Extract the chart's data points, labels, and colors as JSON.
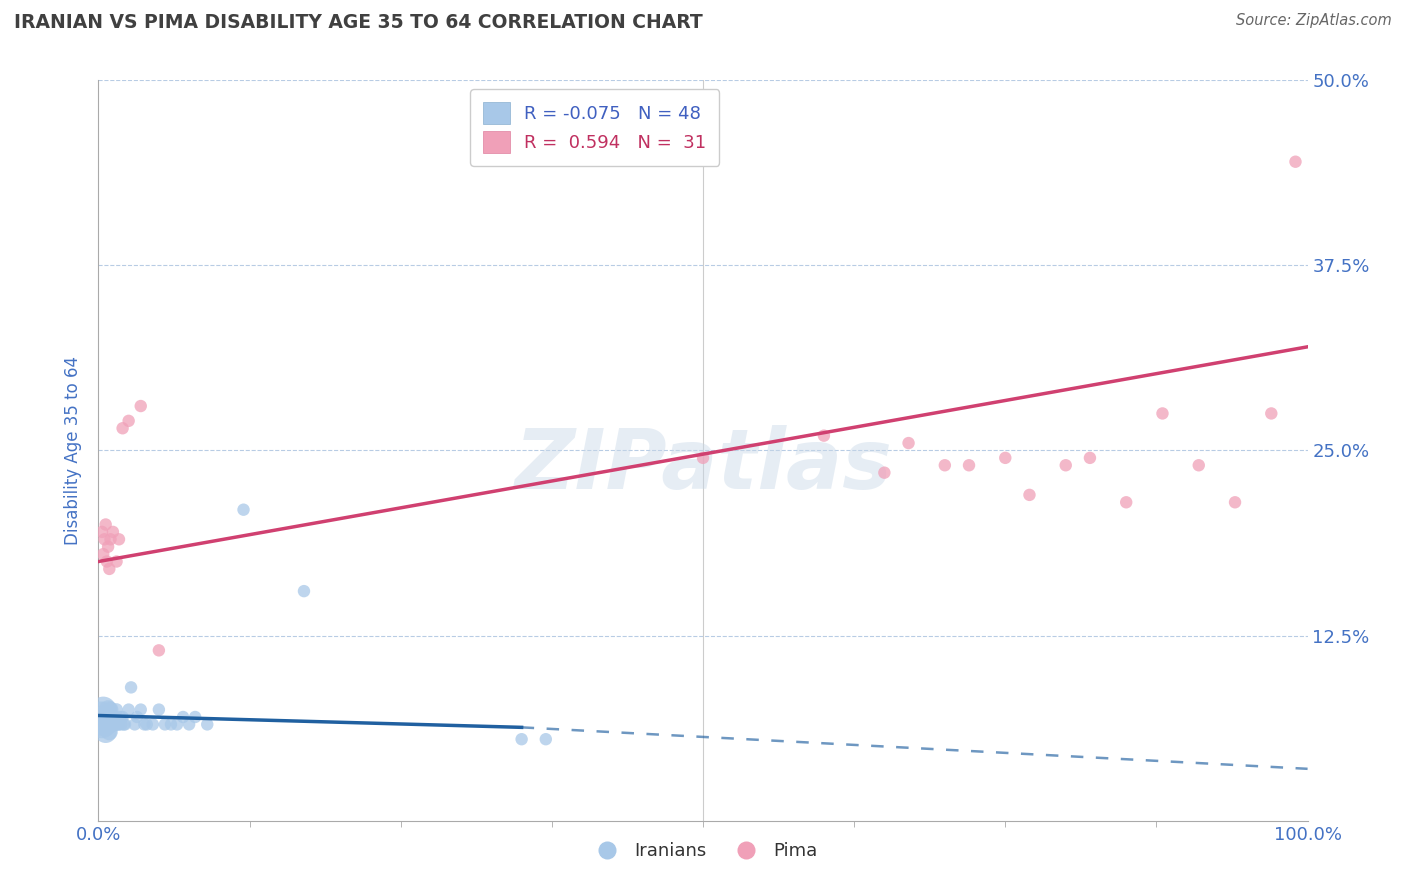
{
  "title": "IRANIAN VS PIMA DISABILITY AGE 35 TO 64 CORRELATION CHART",
  "source": "Source: ZipAtlas.com",
  "ylabel": "Disability Age 35 to 64",
  "xlim": [
    0.0,
    1.0
  ],
  "ylim": [
    0.0,
    0.5
  ],
  "yticks": [
    0.0,
    0.125,
    0.25,
    0.375,
    0.5
  ],
  "ytick_labels": [
    "",
    "12.5%",
    "25.0%",
    "37.5%",
    "50.0%"
  ],
  "xtick_labels": [
    "0.0%",
    "100.0%"
  ],
  "legend_R_iranian": "-0.075",
  "legend_N_iranian": "48",
  "legend_R_pima": "0.594",
  "legend_N_pima": "31",
  "iranian_color": "#a8c8e8",
  "pima_color": "#f0a0b8",
  "trendline_iranian_color": "#2060a0",
  "trendline_pima_color": "#d04070",
  "background_color": "#ffffff",
  "watermark": "ZIPatlas",
  "iranian_x": [
    0.002,
    0.003,
    0.004,
    0.005,
    0.005,
    0.006,
    0.006,
    0.007,
    0.007,
    0.008,
    0.008,
    0.009,
    0.009,
    0.01,
    0.01,
    0.011,
    0.011,
    0.012,
    0.013,
    0.014,
    0.015,
    0.016,
    0.017,
    0.018,
    0.019,
    0.02,
    0.021,
    0.022,
    0.025,
    0.027,
    0.03,
    0.032,
    0.035,
    0.038,
    0.04,
    0.045,
    0.05,
    0.055,
    0.06,
    0.065,
    0.07,
    0.075,
    0.08,
    0.09,
    0.12,
    0.17,
    0.35,
    0.37
  ],
  "iranian_y": [
    0.07,
    0.065,
    0.075,
    0.065,
    0.07,
    0.06,
    0.065,
    0.07,
    0.065,
    0.075,
    0.065,
    0.07,
    0.06,
    0.065,
    0.075,
    0.07,
    0.065,
    0.065,
    0.07,
    0.065,
    0.075,
    0.065,
    0.065,
    0.07,
    0.065,
    0.07,
    0.065,
    0.065,
    0.075,
    0.09,
    0.065,
    0.07,
    0.075,
    0.065,
    0.065,
    0.065,
    0.075,
    0.065,
    0.065,
    0.065,
    0.07,
    0.065,
    0.07,
    0.065,
    0.21,
    0.155,
    0.055,
    0.055
  ],
  "iranian_sizes": [
    500,
    400,
    350,
    300,
    280,
    260,
    240,
    220,
    200,
    180,
    170,
    160,
    150,
    140,
    130,
    120,
    110,
    100,
    90,
    90,
    85,
    85,
    80,
    80,
    80,
    80,
    80,
    80,
    80,
    80,
    80,
    80,
    80,
    80,
    80,
    80,
    80,
    80,
    80,
    80,
    80,
    80,
    80,
    80,
    80,
    80,
    80,
    80
  ],
  "pima_x": [
    0.003,
    0.004,
    0.005,
    0.006,
    0.007,
    0.008,
    0.009,
    0.01,
    0.012,
    0.015,
    0.017,
    0.02,
    0.025,
    0.035,
    0.05,
    0.5,
    0.6,
    0.65,
    0.67,
    0.7,
    0.72,
    0.75,
    0.77,
    0.8,
    0.82,
    0.85,
    0.88,
    0.91,
    0.94,
    0.97,
    0.99
  ],
  "pima_y": [
    0.195,
    0.18,
    0.19,
    0.2,
    0.175,
    0.185,
    0.17,
    0.19,
    0.195,
    0.175,
    0.19,
    0.265,
    0.27,
    0.28,
    0.115,
    0.245,
    0.26,
    0.235,
    0.255,
    0.24,
    0.24,
    0.245,
    0.22,
    0.24,
    0.245,
    0.215,
    0.275,
    0.24,
    0.215,
    0.275,
    0.445
  ],
  "pima_sizes": [
    80,
    80,
    80,
    80,
    80,
    80,
    80,
    80,
    80,
    80,
    80,
    80,
    80,
    80,
    80,
    80,
    80,
    80,
    80,
    80,
    80,
    80,
    80,
    80,
    80,
    80,
    80,
    80,
    80,
    80,
    80
  ],
  "trendline_ir_x0": 0.0,
  "trendline_ir_x_solid_end": 0.35,
  "trendline_ir_x_dash_end": 1.0,
  "trendline_ir_y0": 0.071,
  "trendline_ir_y_solid_end": 0.063,
  "trendline_ir_y_dash_end": 0.035,
  "trendline_pima_x0": 0.0,
  "trendline_pima_x1": 1.0,
  "trendline_pima_y0": 0.175,
  "trendline_pima_y1": 0.32
}
